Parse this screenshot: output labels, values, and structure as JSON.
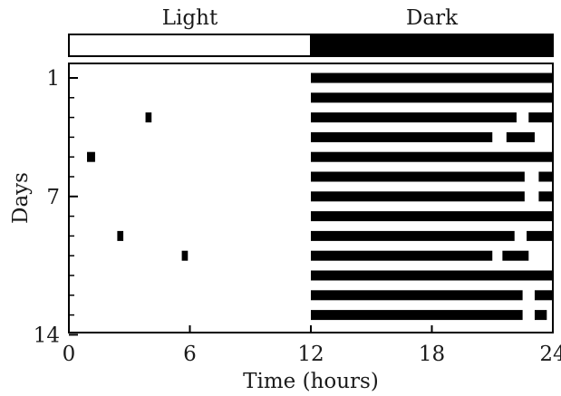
{
  "chart_data": {
    "type": "bar",
    "subtype": "actogram",
    "xlabel": "Time (hours)",
    "ylabel": "Days",
    "xlim": [
      0,
      24
    ],
    "ylim": [
      1,
      14
    ],
    "x_ticks": [
      0,
      6,
      12,
      18,
      24
    ],
    "y_ticks": [
      1,
      7,
      14
    ],
    "y_minor_ticks": [
      1,
      2,
      3,
      4,
      5,
      6,
      7,
      8,
      9,
      10,
      11,
      12,
      13,
      14
    ],
    "light_dark_bar": [
      {
        "label": "Light",
        "start": 0,
        "end": 12,
        "color": "#ffffff"
      },
      {
        "label": "Dark",
        "start": 12,
        "end": 24,
        "color": "#000000"
      }
    ],
    "activity_color": "#000000",
    "days": [
      {
        "day": 1,
        "bouts": [
          [
            12,
            24
          ]
        ]
      },
      {
        "day": 2,
        "bouts": [
          [
            12,
            24
          ]
        ]
      },
      {
        "day": 3,
        "bouts": [
          [
            3.8,
            4.1
          ],
          [
            12,
            22.2
          ],
          [
            22.8,
            24
          ]
        ]
      },
      {
        "day": 4,
        "bouts": [
          [
            12,
            21
          ],
          [
            21.7,
            23.1
          ]
        ]
      },
      {
        "day": 5,
        "bouts": [
          [
            0.9,
            1.3
          ],
          [
            12,
            24
          ]
        ]
      },
      {
        "day": 6,
        "bouts": [
          [
            12,
            22.6
          ],
          [
            23.3,
            24
          ]
        ]
      },
      {
        "day": 7,
        "bouts": [
          [
            12,
            22.6
          ],
          [
            23.3,
            24
          ]
        ]
      },
      {
        "day": 8,
        "bouts": [
          [
            12,
            24
          ]
        ]
      },
      {
        "day": 9,
        "bouts": [
          [
            2.4,
            2.7
          ],
          [
            12,
            22.1
          ],
          [
            22.7,
            24
          ]
        ]
      },
      {
        "day": 10,
        "bouts": [
          [
            5.6,
            5.9
          ],
          [
            12,
            21
          ],
          [
            21.5,
            22.8
          ]
        ]
      },
      {
        "day": 11,
        "bouts": [
          [
            12,
            24
          ]
        ]
      },
      {
        "day": 12,
        "bouts": [
          [
            12,
            22.5
          ],
          [
            23.1,
            24
          ]
        ]
      },
      {
        "day": 13,
        "bouts": [
          [
            12,
            22.5
          ],
          [
            23.1,
            23.7
          ]
        ]
      }
    ]
  }
}
